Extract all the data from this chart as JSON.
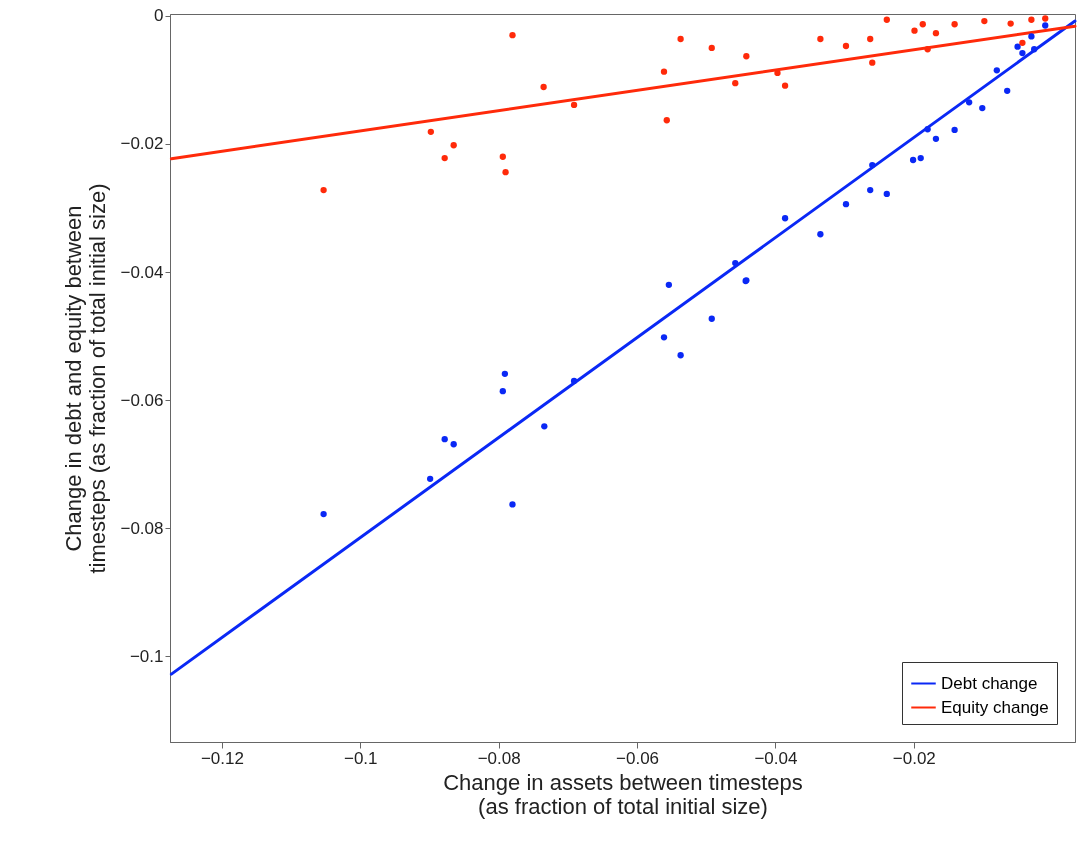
{
  "chart_data": {
    "type": "scatter",
    "xlabel": "Change in assets between timesteps\n(as fraction of total initial size)",
    "ylabel": "Change in debt and equity between\ntimesteps (as fraction of total initial size)",
    "xlim": [
      -0.1275,
      0.0033
    ],
    "ylim": [
      -0.1134,
      0.0003
    ],
    "xticks": [
      -0.12,
      -0.1,
      -0.08,
      -0.06,
      -0.04,
      -0.02
    ],
    "yticks": [
      -0.1,
      -0.08,
      -0.06,
      -0.04,
      -0.02,
      0
    ],
    "grid": false,
    "legend": "bottom right",
    "marker": "circle",
    "series": [
      {
        "name": "Debt change",
        "type": "line",
        "marker": "none",
        "color": "#0a28f5",
        "x": [
          -0.1273,
          0.0033
        ],
        "values": [
          -0.1028,
          -0.0008
        ]
      },
      {
        "name": "Equity change",
        "type": "line",
        "marker": "none",
        "color": "#ff2a0a",
        "x": [
          -0.1273,
          0.0033
        ],
        "values": [
          -0.0223,
          -0.0016
        ]
      },
      {
        "color": "#0a28f5",
        "x": [
          -0.1053,
          -0.0899,
          -0.0878,
          -0.0865,
          -0.0794,
          -0.0791,
          -0.078,
          -0.0734,
          -0.0691,
          -0.0561,
          -0.0554,
          -0.0537,
          -0.0492,
          -0.0458,
          -0.0443,
          -0.0442,
          -0.0386,
          -0.0335,
          -0.0298,
          -0.0263,
          -0.026,
          -0.0239,
          -0.0201,
          -0.019,
          -0.018,
          -0.0168,
          -0.0141,
          -0.0101,
          -0.0065,
          -0.0043,
          -0.0026,
          -0.012,
          -0.008,
          -0.005,
          -0.003,
          -0.001
        ],
        "values": [
          -0.0778,
          -0.0723,
          -0.0661,
          -0.0669,
          -0.0586,
          -0.0559,
          -0.0763,
          -0.0641,
          -0.057,
          -0.0502,
          -0.042,
          -0.053,
          -0.0473,
          -0.0386,
          -0.0414,
          -0.0413,
          -0.0316,
          -0.0341,
          -0.0294,
          -0.0272,
          -0.0233,
          -0.0278,
          -0.0225,
          -0.0222,
          -0.0177,
          -0.0192,
          -0.0178,
          -0.0144,
          -0.0117,
          -0.0058,
          -0.0052,
          -0.0135,
          -0.0085,
          -0.0048,
          -0.0032,
          -0.0015
        ]
      },
      {
        "color": "#ff2a0a",
        "x": [
          -0.1053,
          -0.0898,
          -0.0878,
          -0.0865,
          -0.0794,
          -0.079,
          -0.078,
          -0.0735,
          -0.0691,
          -0.0561,
          -0.0557,
          -0.0537,
          -0.0492,
          -0.0458,
          -0.0442,
          -0.0397,
          -0.0386,
          -0.0335,
          -0.0298,
          -0.0263,
          -0.026,
          -0.0239,
          -0.0199,
          -0.0187,
          -0.018,
          -0.0168,
          -0.0141,
          -0.0098,
          -0.0043,
          -0.006,
          -0.003,
          -0.001
        ],
        "values": [
          -0.0272,
          -0.0181,
          -0.0222,
          -0.0202,
          -0.022,
          -0.0244,
          -0.003,
          -0.0111,
          -0.0139,
          -0.0087,
          -0.0163,
          -0.0036,
          -0.005,
          -0.0105,
          -0.0063,
          -0.0089,
          -0.0109,
          -0.0036,
          -0.0047,
          -0.0036,
          -0.0073,
          -0.0006,
          -0.0023,
          -0.0013,
          -0.0052,
          -0.0027,
          -0.0013,
          -0.0008,
          -0.0042,
          -0.0012,
          -0.0006,
          -0.0004
        ]
      }
    ]
  }
}
